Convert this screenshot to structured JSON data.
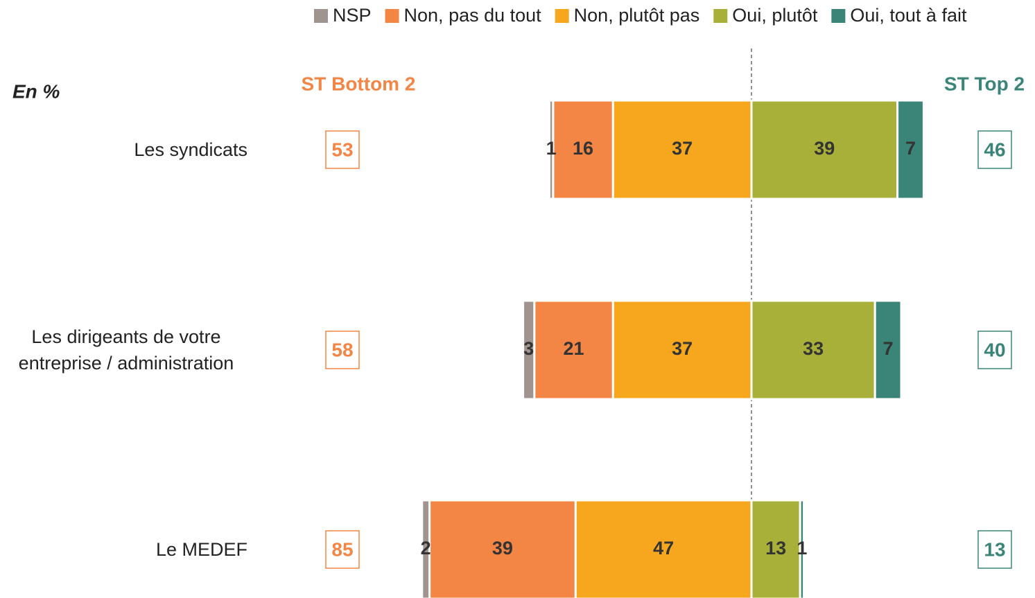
{
  "chart_data": {
    "type": "diverging_bar",
    "unit_label": "En %",
    "bottom_label": "ST Bottom 2",
    "top_label": "ST Top 2",
    "bottom_color": "#f38545",
    "top_color": "#3a8478",
    "categories": [
      "Les syndicats",
      "Les dirigeants de votre entreprise / administration",
      "Le MEDEF"
    ],
    "series": [
      {
        "name": "NSP",
        "color": "#a09490",
        "values": [
          1,
          3,
          2
        ]
      },
      {
        "name": "Non, pas du tout",
        "color": "#f38545",
        "values": [
          16,
          21,
          39
        ]
      },
      {
        "name": "Non, plutôt pas",
        "color": "#f6a71e",
        "values": [
          37,
          37,
          47
        ]
      },
      {
        "name": "Oui, plutôt",
        "color": "#a8b03a",
        "values": [
          39,
          33,
          13
        ]
      },
      {
        "name": "Oui, tout à fait",
        "color": "#3a8478",
        "values": [
          7,
          7,
          1
        ]
      }
    ],
    "bottom2": [
      53,
      58,
      85
    ],
    "top2": [
      46,
      40,
      13
    ]
  }
}
